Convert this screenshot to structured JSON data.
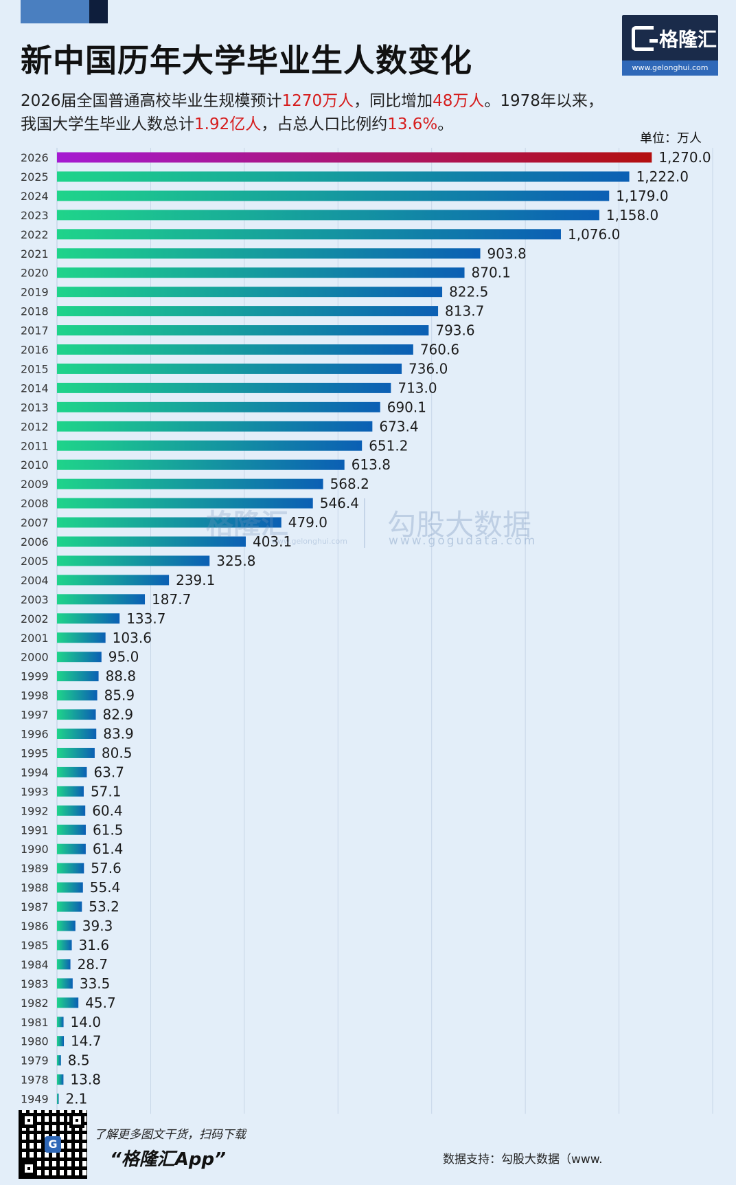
{
  "header": {
    "title": "新中国历年大学毕业生人数变化",
    "logo_name": "格隆汇",
    "logo_url": "www.gelonghui.com"
  },
  "subtitle": {
    "p1": "2026届全国普通高校毕业生规模预计",
    "h1": "1270万人",
    "p2": "，同比增加",
    "h2": "48万人",
    "p3": "。1978年以来，",
    "p4": "我国大学生毕业人数总计",
    "h3": "1.92亿人",
    "p5": "，占总人口比例约",
    "h4": "13.6%",
    "p6": "。"
  },
  "unit_label": "单位：万人",
  "watermark": {
    "brand": "格隆汇",
    "brand_url": "www.gelonghui.com",
    "data_name": "勾股大数据",
    "data_url": "www.gogudata.com"
  },
  "footer": {
    "promo": "了解更多图文干货，扫码下载",
    "app": "“格隆汇App”",
    "source": "数据支持：勾股大数据（www."
  },
  "colors": {
    "background": "#e3eef9",
    "bar_gradient_start": "#1fd48a",
    "bar_gradient_end": "#0b5fb4",
    "highlight_gradient_start": "#a51ad2",
    "highlight_gradient_end": "#b30f0f",
    "accent_red": "#d61c1c",
    "grid": "#c7d6e8"
  },
  "chart_data": {
    "type": "bar",
    "orientation": "horizontal",
    "title": "新中国历年大学毕业生人数变化",
    "unit": "万人",
    "xlim": [
      0,
      1400
    ],
    "grid": true,
    "highlight_category": "2026",
    "categories": [
      "2026",
      "2025",
      "2024",
      "2023",
      "2022",
      "2021",
      "2020",
      "2019",
      "2018",
      "2017",
      "2016",
      "2015",
      "2014",
      "2013",
      "2012",
      "2011",
      "2010",
      "2009",
      "2008",
      "2007",
      "2006",
      "2005",
      "2004",
      "2003",
      "2002",
      "2001",
      "2000",
      "1999",
      "1998",
      "1997",
      "1996",
      "1995",
      "1994",
      "1993",
      "1992",
      "1991",
      "1990",
      "1989",
      "1988",
      "1987",
      "1986",
      "1985",
      "1984",
      "1983",
      "1982",
      "1981",
      "1980",
      "1979",
      "1978",
      "1949"
    ],
    "values": [
      1270.0,
      1222.0,
      1179.0,
      1158.0,
      1076.0,
      903.8,
      870.1,
      822.5,
      813.7,
      793.6,
      760.6,
      736.0,
      713.0,
      690.1,
      673.4,
      651.2,
      613.8,
      568.2,
      546.4,
      479.0,
      403.1,
      325.8,
      239.1,
      187.7,
      133.7,
      103.6,
      95.0,
      88.8,
      85.9,
      82.9,
      83.9,
      80.5,
      63.7,
      57.1,
      60.4,
      61.5,
      61.4,
      57.6,
      55.4,
      53.2,
      39.3,
      31.6,
      28.7,
      33.5,
      45.7,
      14.0,
      14.7,
      8.5,
      13.8,
      2.1
    ],
    "value_labels": [
      "1,270.0",
      "1,222.0",
      "1,179.0",
      "1,158.0",
      "1,076.0",
      "903.8",
      "870.1",
      "822.5",
      "813.7",
      "793.6",
      "760.6",
      "736.0",
      "713.0",
      "690.1",
      "673.4",
      "651.2",
      "613.8",
      "568.2",
      "546.4",
      "479.0",
      "403.1",
      "325.8",
      "239.1",
      "187.7",
      "133.7",
      "103.6",
      "95.0",
      "88.8",
      "85.9",
      "82.9",
      "83.9",
      "80.5",
      "63.7",
      "57.1",
      "60.4",
      "61.5",
      "61.4",
      "57.6",
      "55.4",
      "53.2",
      "39.3",
      "31.6",
      "28.7",
      "33.5",
      "45.7",
      "14.0",
      "14.7",
      "8.5",
      "13.8",
      "2.1"
    ]
  }
}
